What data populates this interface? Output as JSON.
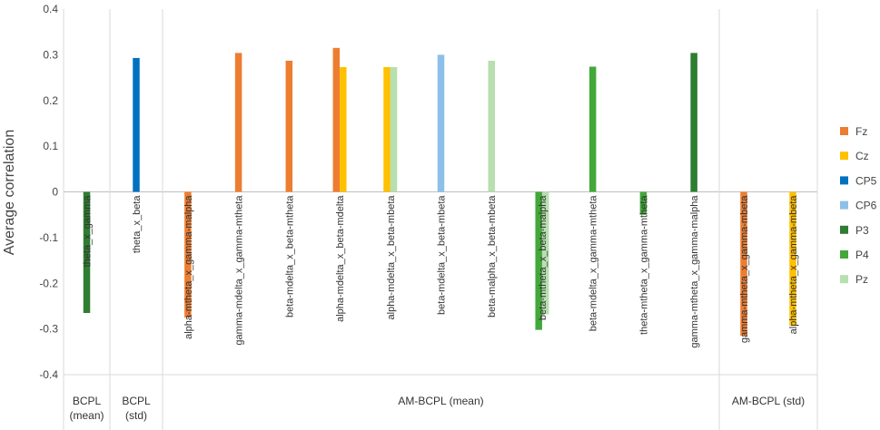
{
  "chart_data": {
    "type": "bar",
    "ylabel": "Average correlation",
    "ylim": [
      -0.4,
      0.4
    ],
    "yticks": [
      0.4,
      0.3,
      0.2,
      0.1,
      0,
      -0.1,
      -0.2,
      -0.3,
      -0.4
    ],
    "ytick_labels": [
      "0.4",
      "0.3",
      "0.2",
      "0.1",
      "0",
      "-0.1",
      "-0.2",
      "-0.3",
      "-0.4"
    ],
    "grid": false,
    "legend_position": "right",
    "series": [
      {
        "name": "Fz",
        "color": "#ED7D31"
      },
      {
        "name": "Cz",
        "color": "#FFC000"
      },
      {
        "name": "CP5",
        "color": "#0070C0"
      },
      {
        "name": "CP6",
        "color": "#8DC0E8"
      },
      {
        "name": "P3",
        "color": "#2E7D32"
      },
      {
        "name": "P4",
        "color": "#43A83A"
      },
      {
        "name": "Pz",
        "color": "#B7DFAF"
      }
    ],
    "categories": [
      {
        "label": "theta_x_gamma",
        "values": {
          "P3": -0.265
        }
      },
      {
        "label": "theta_x_beta",
        "values": {
          "CP5": 0.293
        }
      },
      {
        "label": "alpha-mtheta_x_gamma-malpha",
        "values": {
          "Fz": -0.275
        }
      },
      {
        "label": "gamma-mdelta_x_gamma-mtheta",
        "values": {
          "Fz": 0.304
        }
      },
      {
        "label": "beta-mdelta_x_beta-mtheta",
        "values": {
          "Fz": 0.287
        }
      },
      {
        "label": "alpha-mdelta_x_beta-mdelta",
        "values": {
          "Fz": 0.315,
          "Cz": 0.273
        }
      },
      {
        "label": "alpha-mdelta_x_beta-mbeta",
        "values": {
          "Cz": 0.273,
          "Pz": 0.273
        }
      },
      {
        "label": "beta-mdelta_x_beta-mbeta",
        "values": {
          "CP6": 0.3
        }
      },
      {
        "label": "beta-malpha_x_beta-mbeta",
        "values": {
          "Pz": 0.287
        }
      },
      {
        "label": "beta-mtheta_x_beta-malpha",
        "values": {
          "P4": -0.302,
          "Pz": -0.268
        }
      },
      {
        "label": "beta-mdelta_x_gamma-mtheta",
        "values": {
          "P4": 0.274
        }
      },
      {
        "label": "theta-mtheta_x_gamma-mtheta",
        "values": {
          "P4": -0.05
        }
      },
      {
        "label": "gamma-mtheta_x_gamma-malpha",
        "values": {
          "P3": 0.304
        }
      },
      {
        "label": "gamma-mtheta_x_gamma-mbeta",
        "values": {
          "Fz": -0.315
        }
      },
      {
        "label": "alpha-mtheta_x_gamma-mbeta",
        "values": {
          "Cz": -0.293
        }
      }
    ],
    "groups": [
      {
        "label": "BCPL (mean)",
        "lines": [
          "BCPL",
          "(mean)"
        ],
        "categories": [
          0
        ]
      },
      {
        "label": "BCPL (std)",
        "lines": [
          "BCPL",
          "(std)"
        ],
        "categories": [
          1
        ]
      },
      {
        "label": "AM-BCPL (mean)",
        "lines": [
          "AM-BCPL (mean)"
        ],
        "categories": [
          2,
          3,
          4,
          5,
          6,
          7,
          8,
          9,
          10,
          11,
          12
        ]
      },
      {
        "label": "AM-BCPL (std)",
        "lines": [
          "AM-BCPL (std)"
        ],
        "categories": [
          13,
          14
        ]
      }
    ]
  }
}
